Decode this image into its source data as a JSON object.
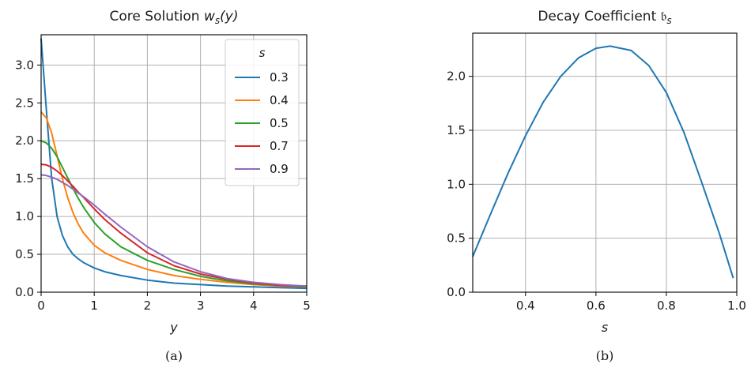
{
  "chart_data": [
    {
      "type": "line",
      "panel": "(a)",
      "title": "Core Solution w_s(y)",
      "title_parts": {
        "main": "Core Solution ",
        "fn": "w",
        "sub": "s",
        "arg": "(y)"
      },
      "xlabel": "y",
      "ylabel": "",
      "xlim": [
        0,
        5
      ],
      "ylim": [
        0,
        3.4
      ],
      "xticks": [
        "0",
        "1",
        "2",
        "3",
        "4",
        "5"
      ],
      "xtick_values": [
        0,
        1,
        2,
        3,
        4,
        5
      ],
      "yticks": [
        "0.0",
        "0.5",
        "1.0",
        "1.5",
        "2.0",
        "2.5",
        "3.0"
      ],
      "ytick_values": [
        0,
        0.5,
        1.0,
        1.5,
        2.0,
        2.5,
        3.0
      ],
      "grid": true,
      "legend": {
        "title": "s",
        "placement": "top-right"
      },
      "x": [
        0,
        0.1,
        0.2,
        0.3,
        0.4,
        0.5,
        0.6,
        0.7,
        0.8,
        1.0,
        1.2,
        1.5,
        2.0,
        2.5,
        3.0,
        3.5,
        4.0,
        4.5,
        5.0
      ],
      "series": [
        {
          "name": "0.3",
          "color": "#1f77b4",
          "values": [
            3.35,
            2.4,
            1.5,
            1.0,
            0.75,
            0.6,
            0.5,
            0.44,
            0.39,
            0.32,
            0.27,
            0.22,
            0.16,
            0.12,
            0.1,
            0.08,
            0.07,
            0.06,
            0.05
          ]
        },
        {
          "name": "0.4",
          "color": "#ff7f0e",
          "values": [
            2.38,
            2.3,
            2.1,
            1.8,
            1.5,
            1.25,
            1.05,
            0.9,
            0.78,
            0.62,
            0.52,
            0.42,
            0.3,
            0.22,
            0.17,
            0.13,
            0.1,
            0.08,
            0.07
          ]
        },
        {
          "name": "0.5",
          "color": "#2ca02c",
          "values": [
            2.0,
            1.97,
            1.9,
            1.79,
            1.65,
            1.51,
            1.37,
            1.24,
            1.12,
            0.92,
            0.77,
            0.6,
            0.42,
            0.3,
            0.21,
            0.15,
            0.11,
            0.09,
            0.07
          ]
        },
        {
          "name": "0.7",
          "color": "#d62728",
          "values": [
            1.69,
            1.68,
            1.65,
            1.6,
            1.54,
            1.47,
            1.4,
            1.32,
            1.25,
            1.1,
            0.96,
            0.78,
            0.52,
            0.35,
            0.24,
            0.17,
            0.12,
            0.09,
            0.08
          ]
        },
        {
          "name": "0.9",
          "color": "#9467bd",
          "values": [
            1.55,
            1.54,
            1.52,
            1.49,
            1.45,
            1.41,
            1.36,
            1.31,
            1.26,
            1.15,
            1.03,
            0.86,
            0.6,
            0.4,
            0.27,
            0.18,
            0.13,
            0.1,
            0.08
          ]
        }
      ]
    },
    {
      "type": "line",
      "panel": "(b)",
      "title": "Decay Coefficient b_s",
      "title_parts": {
        "main": "Decay Coefficient ",
        "sym": "𝔟",
        "sub": "s"
      },
      "xlabel": "s",
      "ylabel": "",
      "xlim": [
        0.25,
        1.0
      ],
      "ylim": [
        0,
        2.4
      ],
      "xticks": [
        "0.4",
        "0.6",
        "0.8",
        "1.0"
      ],
      "xtick_values": [
        0.4,
        0.6,
        0.8,
        1.0
      ],
      "yticks": [
        "0.0",
        "0.5",
        "1.0",
        "1.5",
        "2.0"
      ],
      "ytick_values": [
        0,
        0.5,
        1.0,
        1.5,
        2.0
      ],
      "grid": true,
      "x": [
        0.25,
        0.3,
        0.35,
        0.4,
        0.45,
        0.5,
        0.55,
        0.6,
        0.64,
        0.7,
        0.75,
        0.8,
        0.85,
        0.9,
        0.95,
        0.99
      ],
      "series": [
        {
          "name": "",
          "color": "#1f77b4",
          "values": [
            0.33,
            0.72,
            1.1,
            1.45,
            1.76,
            2.0,
            2.17,
            2.26,
            2.28,
            2.24,
            2.1,
            1.85,
            1.48,
            1.02,
            0.55,
            0.13
          ]
        }
      ]
    }
  ],
  "captions": {
    "a": "(a)",
    "b": "(b)"
  }
}
